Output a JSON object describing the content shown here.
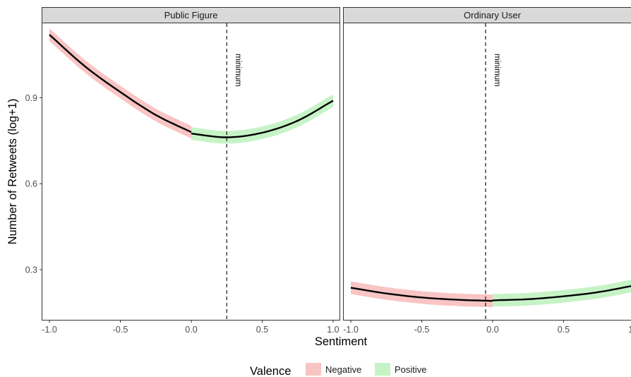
{
  "chart_data": {
    "type": "line",
    "xlabel": "Sentiment",
    "ylabel": "Number of Retweets (log+1)",
    "xlim": [
      -1.05,
      1.05
    ],
    "ylim": [
      0.125,
      1.16
    ],
    "x_ticks": [
      -1.0,
      -0.5,
      0.0,
      0.5,
      1.0
    ],
    "x_tick_labels": [
      "-1.0",
      "-0.5",
      "0.0",
      "0.5",
      "1.0"
    ],
    "y_ticks": [
      0.3,
      0.6,
      0.9
    ],
    "y_tick_labels": [
      "0.3",
      "0.6",
      "0.9"
    ],
    "grid": false,
    "legend": {
      "title": "Valence",
      "placement": "bottom",
      "entries": [
        {
          "label": "Negative",
          "color": "#f8c4c4"
        },
        {
          "label": "Positive",
          "color": "#c6f3c6"
        }
      ]
    },
    "line_color": "#000000",
    "panels": [
      {
        "title": "Public Figure",
        "minimum_x": 0.25,
        "annotation": "minimum",
        "series": [
          {
            "name": "Negative",
            "x": [
              -1.0,
              -0.75,
              -0.5,
              -0.25,
              0.0
            ],
            "y": [
              1.12,
              1.01,
              0.92,
              0.84,
              0.78
            ]
          },
          {
            "name": "Positive",
            "x": [
              0.0,
              0.25,
              0.5,
              0.75,
              1.0
            ],
            "y": [
              0.775,
              0.762,
              0.778,
              0.82,
              0.89
            ]
          }
        ]
      },
      {
        "title": "Ordinary User",
        "minimum_x": -0.05,
        "annotation": "minimum",
        "series": [
          {
            "name": "Negative",
            "x": [
              -1.0,
              -0.75,
              -0.5,
              -0.25,
              0.0
            ],
            "y": [
              0.237,
              0.217,
              0.203,
              0.195,
              0.191
            ]
          },
          {
            "name": "Positive",
            "x": [
              0.0,
              0.25,
              0.5,
              0.75,
              1.0
            ],
            "y": [
              0.193,
              0.197,
              0.207,
              0.222,
              0.245
            ]
          }
        ]
      }
    ]
  }
}
